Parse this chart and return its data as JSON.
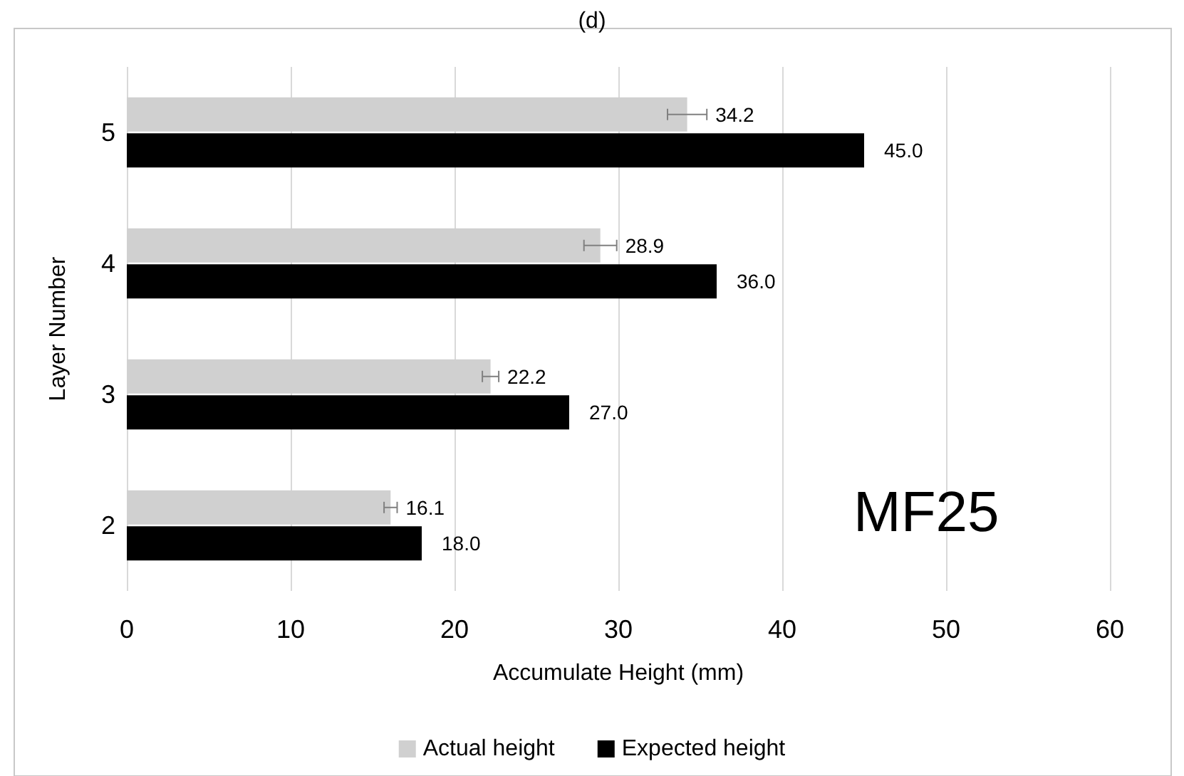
{
  "chart_data": {
    "type": "bar",
    "orientation": "horizontal",
    "title": "(d)",
    "xlabel": "Accumulate Height (mm)",
    "ylabel": "Layer Number",
    "categories": [
      "5",
      "4",
      "3",
      "2"
    ],
    "series": [
      {
        "name": "Actual height",
        "color": "#d0d0d0",
        "values": [
          34.2,
          28.9,
          22.2,
          16.1
        ],
        "errors": [
          1.2,
          1.0,
          0.5,
          0.4
        ],
        "value_labels": [
          "34.2",
          "28.9",
          "22.2",
          "16.1"
        ]
      },
      {
        "name": "Expected height",
        "color": "#000000",
        "values": [
          45.0,
          36.0,
          27.0,
          18.0
        ],
        "value_labels": [
          "45.0",
          "36.0",
          "27.0",
          "18.0"
        ]
      }
    ],
    "xlim": [
      0,
      60
    ],
    "xticks": [
      0,
      10,
      20,
      30,
      40,
      50,
      60
    ],
    "grid": "x",
    "legend": "bottom",
    "annotations": [
      "MF25"
    ]
  }
}
